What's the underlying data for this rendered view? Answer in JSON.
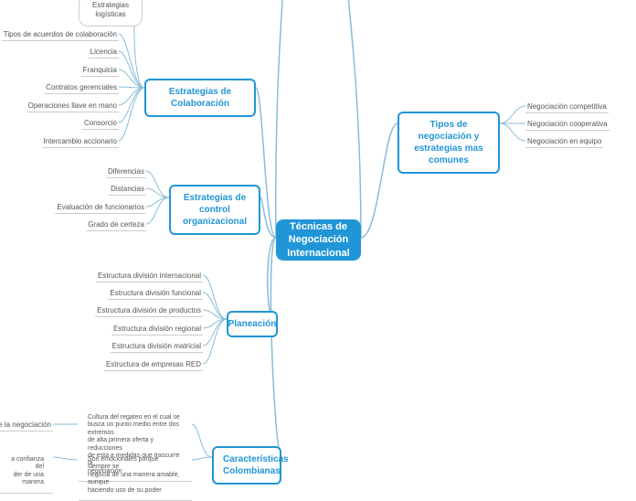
{
  "root": {
    "label": "Técnicas de\nNegociación\nInternacional"
  },
  "branches": {
    "tipos": {
      "label": "Tipos de negociación y\nestrategias mas comunes"
    },
    "colab": {
      "label": "Estrategias de Colaboración"
    },
    "control": {
      "label": "Estrategias de control\norganizacional"
    },
    "plan": {
      "label": "Planeación"
    },
    "carac": {
      "label": "Características\nColombianas"
    }
  },
  "leaves": {
    "logis": "Estrategias logísticas",
    "tiposAc": "Tipos de acuerdos de colaboración",
    "licencia": "Licencia",
    "franq": "Franquicia",
    "contr": "Contratos gerenciales",
    "oper": "Operaciones llave en mano",
    "cons": "Consorcio",
    "interc": "Intercambio accionario",
    "dif": "Diferencias",
    "dist": "Distancias",
    "eval": "Evaluación de funcionarios",
    "grado": "Grado de certeza",
    "e1": "Estructura división internacional",
    "e2": "Estructura división funcional",
    "e3": "Estructura división de productos",
    "e4": "Estructura división regional",
    "e5": "Estructura división matricial",
    "e6": "Estructura de empresas RED",
    "ngComp": "Negociación competitiva",
    "ngCoop": "Negociación cooperativa",
    "ngEq": "Negociación en equipo",
    "frag1": "nto de la negociación",
    "frag2": "a confianza del\nder de una manera",
    "p1": "Cultura del regateo en el cual se\nbusca un punto medio entre dos extremos\nde alta primera oferta y reducciones\nde esta a medidas que trascurre la\nnegociación",
    "p2": "Son emocionales porque siempre se\nnegocia de una manera amable, aunque\nhaciendo uso de su poder"
  },
  "style": {
    "rootBg": "#2196d6",
    "rootText": "#ffffff",
    "branchBorder": "#2196d6",
    "branchText": "#2196d6",
    "leafText": "#555555",
    "connector": "#88bcd8",
    "leafLine": "#cccccc"
  }
}
